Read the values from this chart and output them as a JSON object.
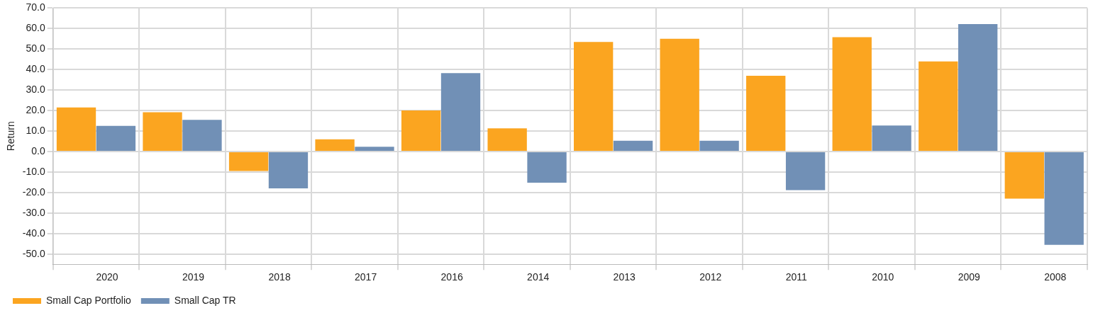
{
  "chart_data": {
    "type": "bar",
    "ylabel": "Return",
    "categories": [
      "2020",
      "2019",
      "2018",
      "2017",
      "2016",
      "2014",
      "2013",
      "2012",
      "2011",
      "2010",
      "2009",
      "2008"
    ],
    "series": [
      {
        "name": "Small Cap Portfolio",
        "color": "#fba520",
        "values": [
          21.5,
          19.2,
          -9.5,
          6.0,
          20.0,
          11.3,
          53.5,
          55.0,
          37.0,
          55.8,
          44.0,
          -23.0
        ]
      },
      {
        "name": "Small Cap TR",
        "color": "#7190b6",
        "values": [
          12.5,
          15.5,
          -18.0,
          2.3,
          38.3,
          -15.2,
          5.3,
          5.3,
          -18.8,
          12.7,
          62.2,
          -45.5
        ]
      }
    ],
    "ylim": [
      -55,
      70
    ],
    "yticks": [
      {
        "value": -50,
        "label": "-50.0"
      },
      {
        "value": -40,
        "label": "-40.0"
      },
      {
        "value": -30,
        "label": "-30.0"
      },
      {
        "value": -20,
        "label": "-20.0"
      },
      {
        "value": -10,
        "label": "-10.0"
      },
      {
        "value": 0,
        "label": "0.0"
      },
      {
        "value": 10,
        "label": "10.0"
      },
      {
        "value": 20,
        "label": "20.0"
      },
      {
        "value": 30,
        "label": "30.0"
      },
      {
        "value": 40,
        "label": "40.0"
      },
      {
        "value": 50,
        "label": "50.0"
      },
      {
        "value": 60,
        "label": "60.0"
      },
      {
        "value": 70,
        "label": "70.0"
      }
    ],
    "grid": true,
    "legend": "bottom"
  }
}
